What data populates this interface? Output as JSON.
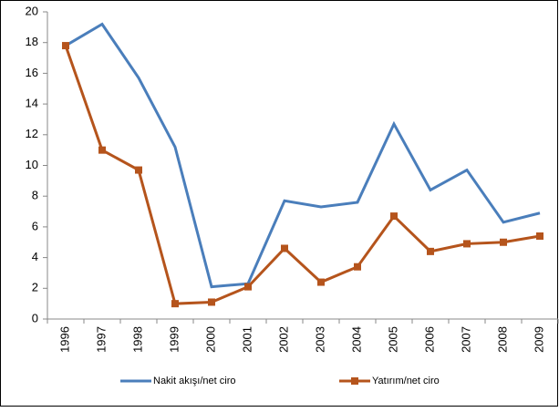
{
  "chart_data": {
    "type": "line",
    "categories": [
      "1996",
      "1997",
      "1998",
      "1999",
      "2000",
      "2001",
      "2002",
      "2003",
      "2004",
      "2005",
      "2006",
      "2007",
      "2008",
      "2009"
    ],
    "series": [
      {
        "name": "Nakit akışı/net ciro",
        "color": "#4a7ebb",
        "marker": "none",
        "values": [
          17.8,
          19.2,
          15.7,
          11.2,
          2.1,
          2.3,
          7.7,
          7.3,
          7.6,
          12.7,
          8.4,
          9.7,
          6.3,
          6.9
        ]
      },
      {
        "name": "Yatırım/net ciro",
        "color": "#b5541c",
        "marker": "square",
        "values": [
          17.8,
          11.0,
          9.7,
          1.0,
          1.1,
          2.1,
          4.6,
          2.4,
          3.4,
          6.7,
          4.4,
          4.9,
          5.0,
          5.4
        ]
      }
    ],
    "ylim": [
      0,
      20
    ],
    "yticks": [
      0,
      2,
      4,
      6,
      8,
      10,
      12,
      14,
      16,
      18,
      20
    ],
    "grid": false,
    "legend": "bottom"
  }
}
